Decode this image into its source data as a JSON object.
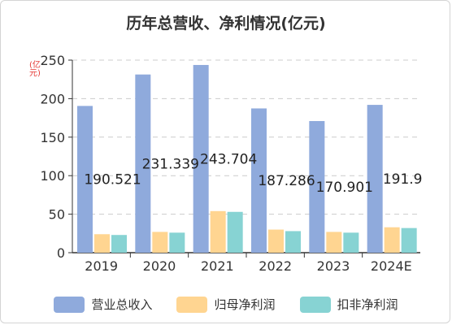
{
  "chart_data": {
    "type": "bar",
    "title": "历年总营收、净利情况(亿元)",
    "yunit": "(亿元)",
    "categories": [
      "2019",
      "2020",
      "2021",
      "2022",
      "2023",
      "2024E"
    ],
    "series": [
      {
        "name": "营业总收入",
        "color": "#8faadc",
        "values": [
          190.521,
          231.339,
          243.704,
          187.286,
          170.901,
          191.9
        ]
      },
      {
        "name": "归母净利润",
        "color": "#ffd591",
        "values": [
          24,
          27,
          54,
          30,
          27,
          33
        ]
      },
      {
        "name": "扣非净利润",
        "color": "#87d3d3",
        "values": [
          23,
          26,
          53,
          28,
          26,
          32
        ]
      }
    ],
    "data_labels": [
      "190.521",
      "231.339",
      "243.704",
      "187.286",
      "170.901",
      "191.9"
    ],
    "ylim": [
      0,
      250
    ],
    "yticks": [
      "0",
      "50",
      "100",
      "150",
      "200",
      "250"
    ],
    "grid": true,
    "legend": "bottom"
  }
}
